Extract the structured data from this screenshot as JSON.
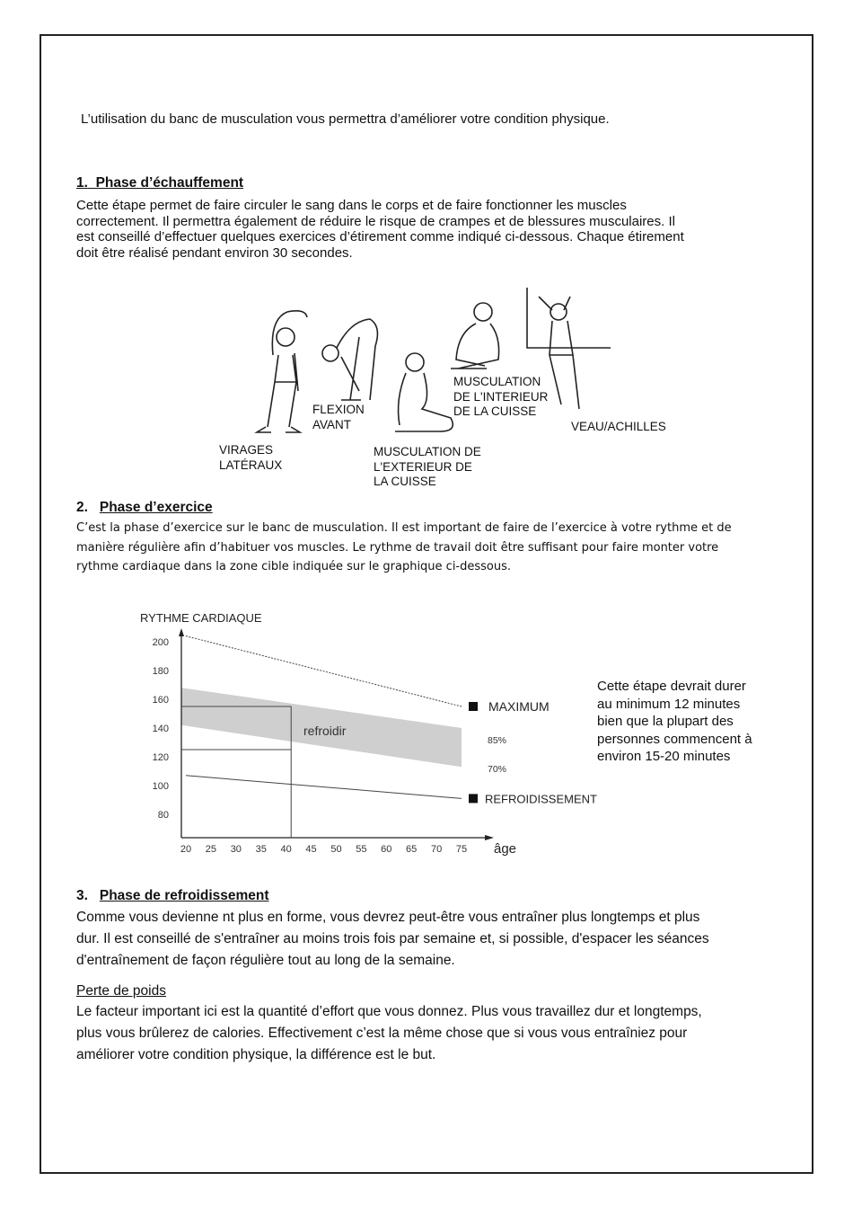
{
  "intro": "L’utilisation du banc de musculation vous permettra d’améliorer votre condition physique.",
  "section1": {
    "number": "1.",
    "title": "Phase d’échauffement",
    "lines": [
      "Cette étape permet de faire circuler le sang dans le corps et de faire fonctionner les muscles",
      "correctement. Il permettra également de réduire le risque de crampes et de blessures musculaires. Il",
      "est conseillé d’effectuer quelques exercices d’étirement comme indiqué ci-dessous. Chaque étirement",
      "doit être réalisé pendant environ 30 secondes."
    ],
    "figures": {
      "virages": "VIRAGES\nLATÉRAUX",
      "flexion": "FLEXION\nAVANT",
      "exterieur": "MUSCULATION DE\nL'EXTERIEUR DE\nLA CUISSE",
      "interieur": "MUSCULATION\nDE L'INTERIEUR\nDE LA CUISSE",
      "veau": "VEAU/ACHILLES"
    }
  },
  "section2": {
    "number": "2.",
    "title": "Phase d’exercice",
    "lines": [
      "C’est la phase d’exercice sur le banc de musculation. Il est important de faire de l’exercice à votre rythme et de",
      "manière régulière afin d’habituer vos muscles. Le rythme de travail doit être suffisant pour faire monter votre",
      "rythme cardiaque dans la zone cible indiquée sur le graphique ci-dessous."
    ],
    "side_note": [
      "Cette étape devrait durer",
      "au minimum 12 minutes",
      "bien que la plupart des",
      "personnes commencent à",
      "environ 15-20 minutes"
    ]
  },
  "chart_data": {
    "type": "line",
    "ylabel": "RYTHME CARDIAQUE",
    "xlabel": "âge",
    "x_ticks": [
      20,
      25,
      30,
      35,
      40,
      45,
      50,
      55,
      60,
      65,
      70,
      75
    ],
    "y_ticks": [
      200,
      180,
      160,
      140,
      120,
      100,
      80
    ],
    "series": [
      {
        "name": "MAXIMUM",
        "x": [
          20,
          75
        ],
        "y": [
          204,
          155
        ],
        "style": "dotted"
      },
      {
        "name": "REFROIDISSEMENT",
        "x": [
          20,
          75
        ],
        "y": [
          107,
          91
        ],
        "style": "solid"
      }
    ],
    "band": {
      "upper_label": "85%",
      "lower_label": "70%",
      "x": [
        20,
        75
      ],
      "upper": [
        168,
        140
      ],
      "lower": [
        142,
        113
      ],
      "color": "#cfcfcf"
    },
    "band_label": "refroidir",
    "guide": {
      "age": 41,
      "levels": [
        155,
        125
      ]
    },
    "grid": false
  },
  "section3": {
    "number": "3.",
    "title": "Phase de refroidissement",
    "lines": [
      "Comme vous devienne nt plus en forme, vous devrez peut-être vous entraîner plus longtemps et plus",
      "dur. Il est conseillé de s'entraîner au moins trois fois par semaine et, si possible, d'espacer les séances",
      "d'entraînement de façon régulière tout au long de la semaine."
    ],
    "subheading": "Perte de poids",
    "sub_lines": [
      "Le facteur important ici est la quantité d’effort que vous donnez. Plus vous travaillez dur et longtemps,",
      "plus vous brûlerez de calories. Effectivement c’est la même chose que si vous vous entraîniez pour",
      "améliorer votre condition physique, la différence est le but."
    ]
  }
}
